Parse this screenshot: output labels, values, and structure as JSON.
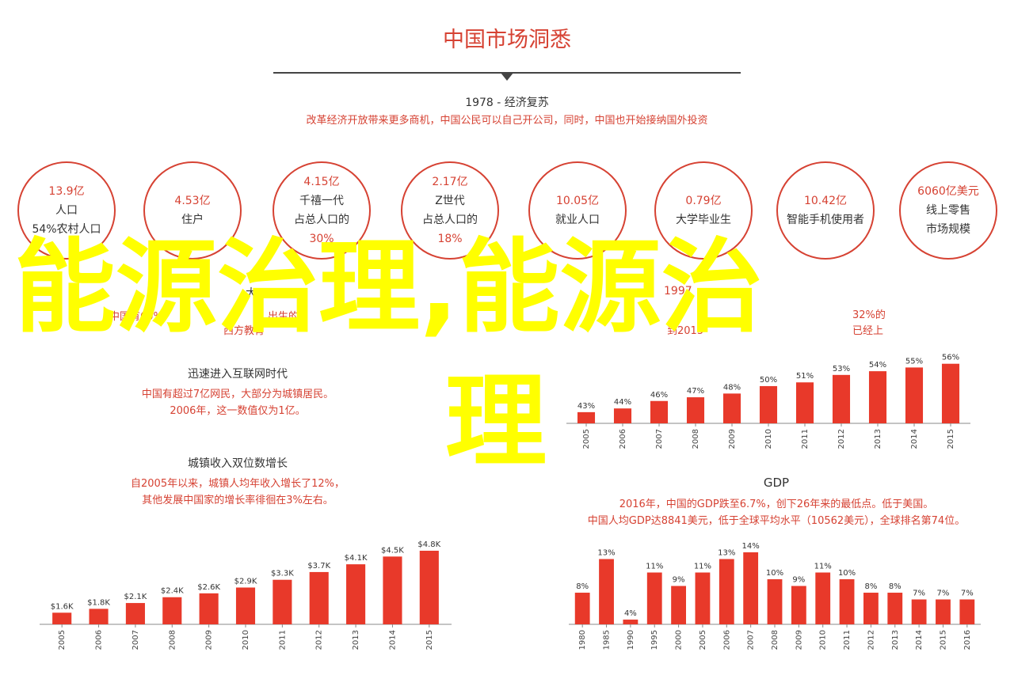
{
  "title": "中国市场洞悉",
  "section_1978": {
    "heading": "1978 - 经济复苏",
    "text": "改革经济开放带来更多商机，中国公民可以自己开公司，同时，中国也开始接纳国外投资"
  },
  "circles": [
    {
      "lines": [
        "13.9亿",
        "人口",
        "54%农村人口"
      ]
    },
    {
      "lines": [
        "4.53亿",
        "住户"
      ]
    },
    {
      "lines": [
        "4.15亿",
        "千禧一代",
        "占总人口的",
        "30%"
      ]
    },
    {
      "lines": [
        "2.17亿",
        "Z世代",
        "占总人口的",
        "18%"
      ]
    },
    {
      "lines": [
        "10.05亿",
        "就业人口"
      ]
    },
    {
      "lines": [
        "0.79亿",
        "大学毕业生"
      ]
    },
    {
      "lines": [
        "10.42亿",
        "智能手机使用者"
      ]
    },
    {
      "lines": [
        "6060亿美元",
        "线上零售",
        "市场规模"
      ]
    }
  ],
  "left_partial": {
    "line1": "大",
    "line2": "中国有60%"
  },
  "left_partial_mid": "出生的",
  "left_partial_mid2": "西方教育",
  "right_partial": {
    "line1": "1997",
    "line2": "到2015"
  },
  "right_partial_r1": "32%的",
  "right_partial_r2": "已经上",
  "section_internet": {
    "heading": "迅速进入互联网时代",
    "text1": "中国有超过7亿网民，大部分为城镇居民。",
    "text2": "2006年，这一数值仅为1亿。"
  },
  "section_income": {
    "heading": "城镇收入双位数增长",
    "text1": "自2005年以来，城镇人均年收入增长了12%，",
    "text2": "其他发展中国家的增长率徘徊在3%左右。"
  },
  "section_gdp": {
    "heading": "GDP",
    "text1": "2016年，中国的GDP跌至6.7%，创下26年来的最低点。低于美国。",
    "text2": "中国人均GDP达8841美元，低于全球平均水平（10562美元），全球排名第74位。"
  },
  "overlay": {
    "text": "能源治理,能源治",
    "text2": "理",
    "color": "#ffff00"
  },
  "colors": {
    "accent": "#d64233",
    "bar": "#e8392a",
    "axis": "#888888"
  },
  "chart_data": [
    {
      "type": "bar",
      "name": "internet",
      "categories": [
        "2005",
        "2006",
        "2007",
        "2008",
        "2009",
        "2010",
        "2011",
        "2012",
        "2013",
        "2014",
        "2015"
      ],
      "values": [
        43,
        44,
        46,
        47,
        48,
        50,
        51,
        53,
        54,
        55,
        56
      ],
      "labels": [
        "43%",
        "44%",
        "46%",
        "47%",
        "48%",
        "50%",
        "51%",
        "53%",
        "54%",
        "55%",
        "56%"
      ],
      "ylim": [
        40,
        57
      ]
    },
    {
      "type": "bar",
      "name": "income",
      "categories": [
        "2005",
        "2006",
        "2007",
        "2008",
        "2009",
        "2010",
        "2011",
        "2012",
        "2013",
        "2014",
        "2015"
      ],
      "values": [
        1.6,
        1.8,
        2.1,
        2.4,
        2.6,
        2.9,
        3.3,
        3.7,
        4.1,
        4.5,
        4.8
      ],
      "labels": [
        "$1.6K",
        "$1.8K",
        "$2.1K",
        "$2.4K",
        "$2.6K",
        "$2.9K",
        "$3.3K",
        "$3.7K",
        "$4.1K",
        "$4.5K",
        "$4.8K"
      ],
      "ylim": [
        1.0,
        4.8
      ]
    },
    {
      "type": "bar",
      "name": "gdp",
      "categories": [
        "1980",
        "1985",
        "1990",
        "1995",
        "2000",
        "2005",
        "2006",
        "2007",
        "2008",
        "2009",
        "2010",
        "2011",
        "2012",
        "2013",
        "2014",
        "2015",
        "2016"
      ],
      "values": [
        8,
        13,
        4,
        11,
        9,
        11,
        13,
        14,
        10,
        9,
        11,
        10,
        8,
        8,
        7,
        7,
        7
      ],
      "labels": [
        "8%",
        "13%",
        "4%",
        "11%",
        "9%",
        "11%",
        "13%",
        "14%",
        "10%",
        "9%",
        "11%",
        "10%",
        "8%",
        "8%",
        "7%",
        "7%",
        "7%"
      ],
      "ylim": [
        3.3,
        14
      ]
    }
  ]
}
